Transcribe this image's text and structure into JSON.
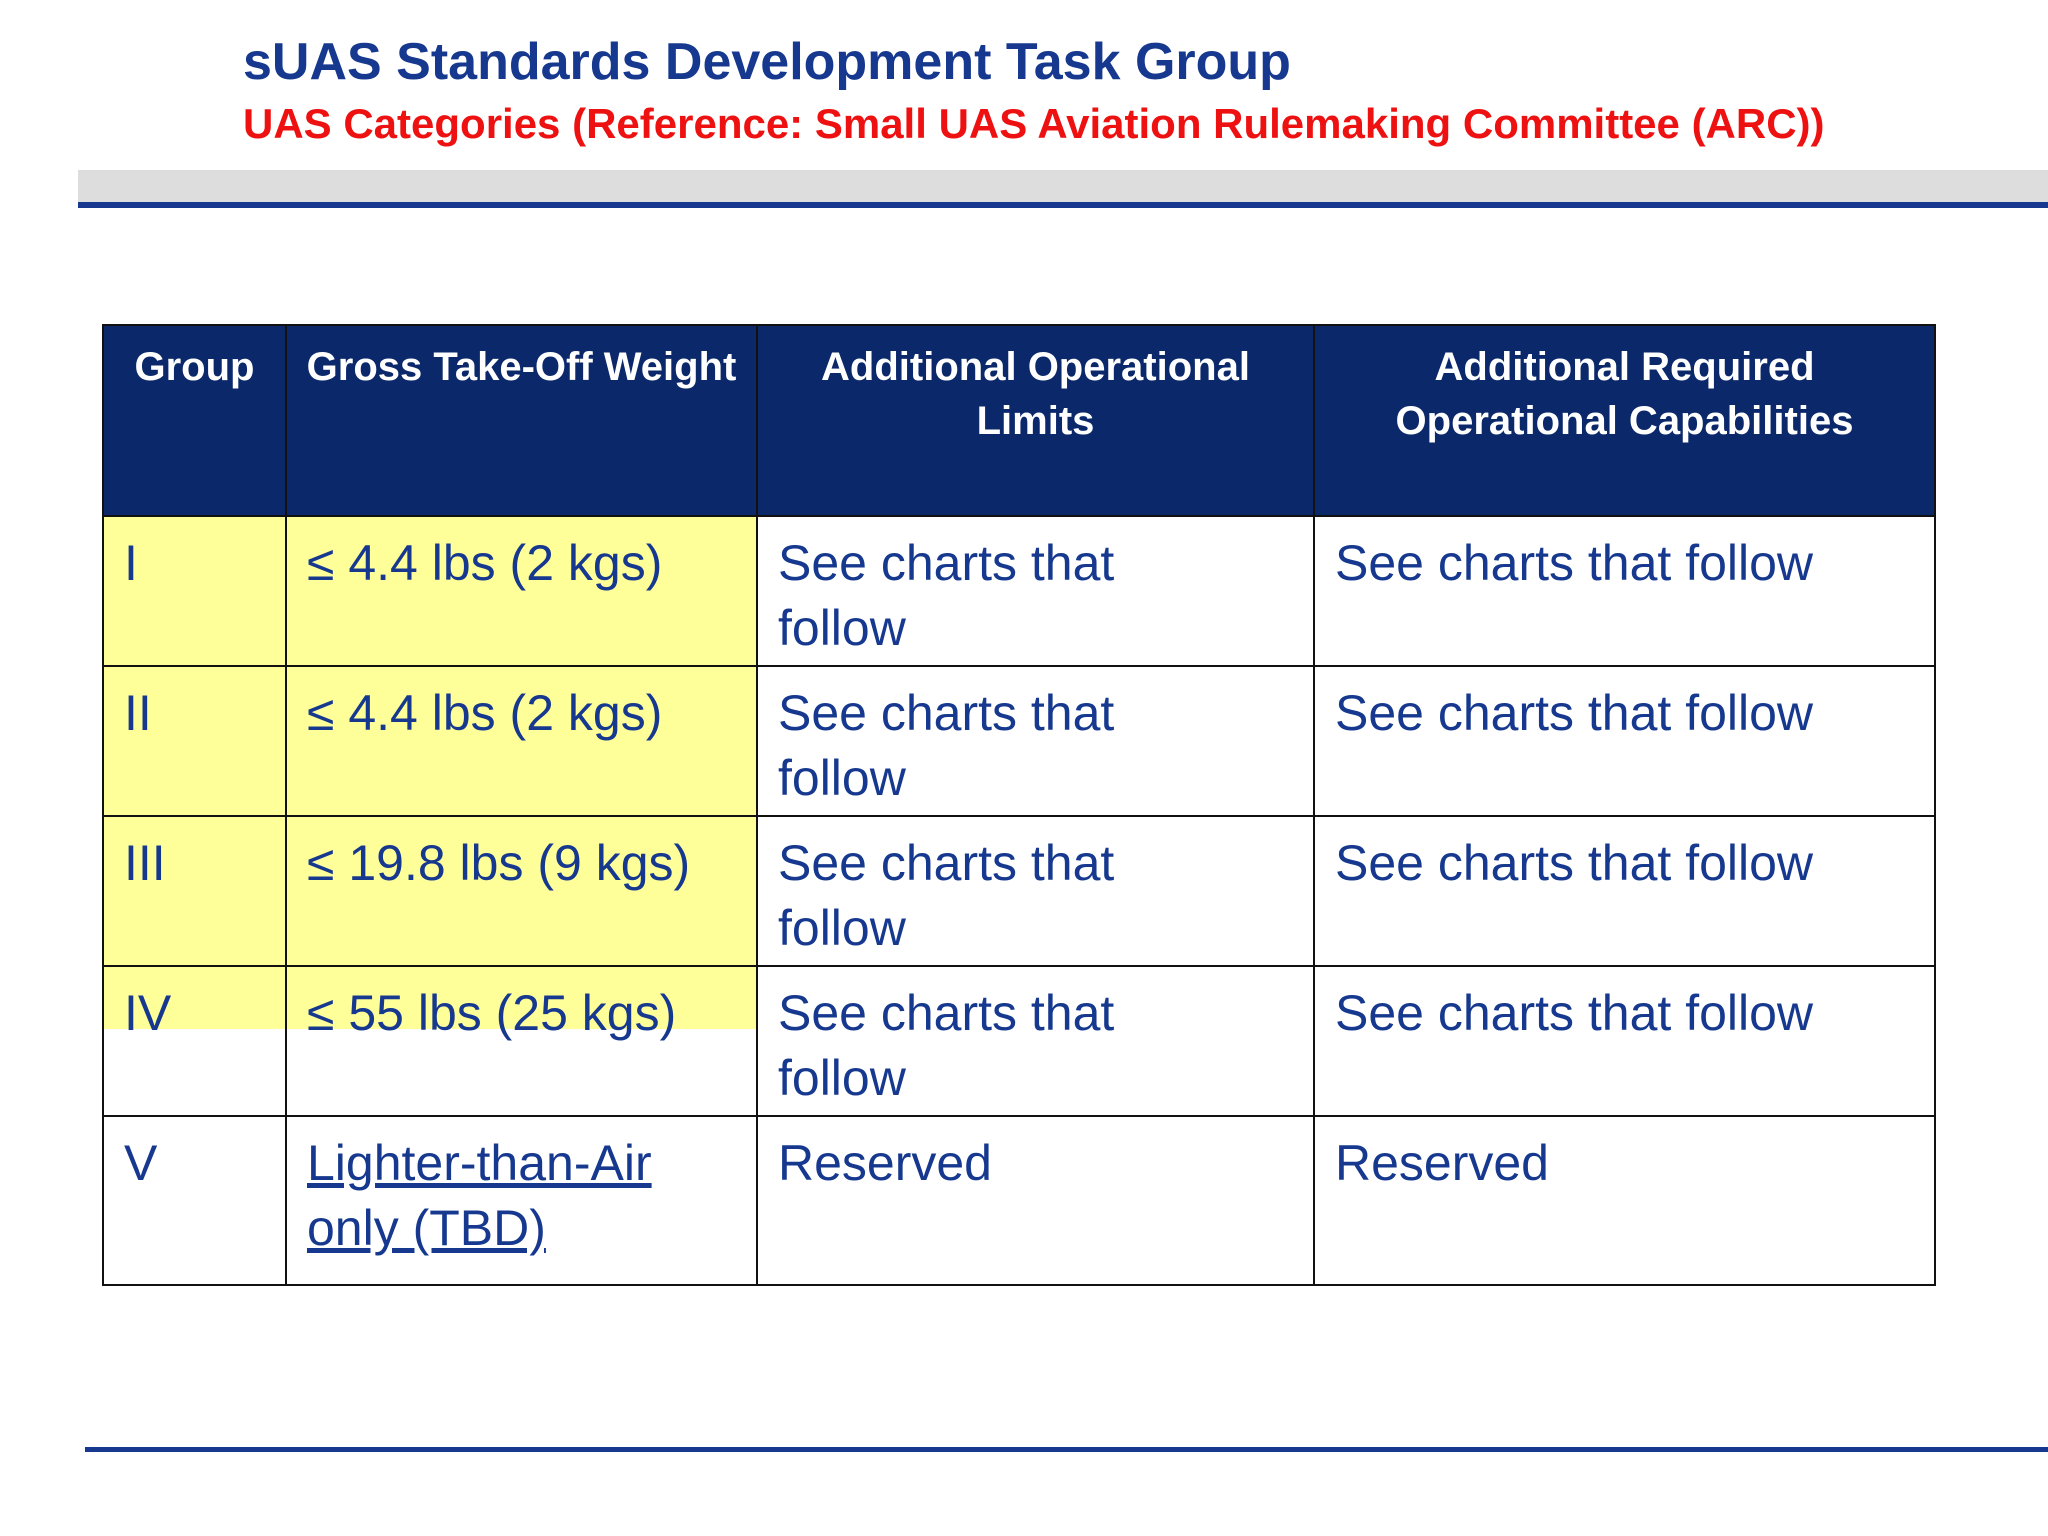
{
  "header": {
    "title": "sUAS Standards Development Task Group",
    "subtitle": "UAS Categories (Reference: Small UAS Aviation Rulemaking Committee (ARC))"
  },
  "table": {
    "columns": [
      "Group",
      "Gross Take-Off Weight",
      "Additional Operational Limits",
      "Additional Required Operational Capabilities"
    ],
    "rows": [
      [
        "I",
        "≤ 4.4 lbs (2 kgs)",
        "See charts that follow",
        "See charts that follow"
      ],
      [
        "II",
        "≤ 4.4 lbs (2 kgs)",
        "See charts that follow",
        "See charts that follow"
      ],
      [
        "III",
        "≤ 19.8 lbs (9 kgs)",
        "See charts that follow",
        "See charts that follow"
      ],
      [
        "IV",
        "≤ 55 lbs (25 kgs)",
        "See charts that follow",
        "See charts that follow"
      ],
      [
        "V",
        "Lighter-than-Air only (TBD)",
        "Reserved",
        "Reserved"
      ]
    ]
  }
}
